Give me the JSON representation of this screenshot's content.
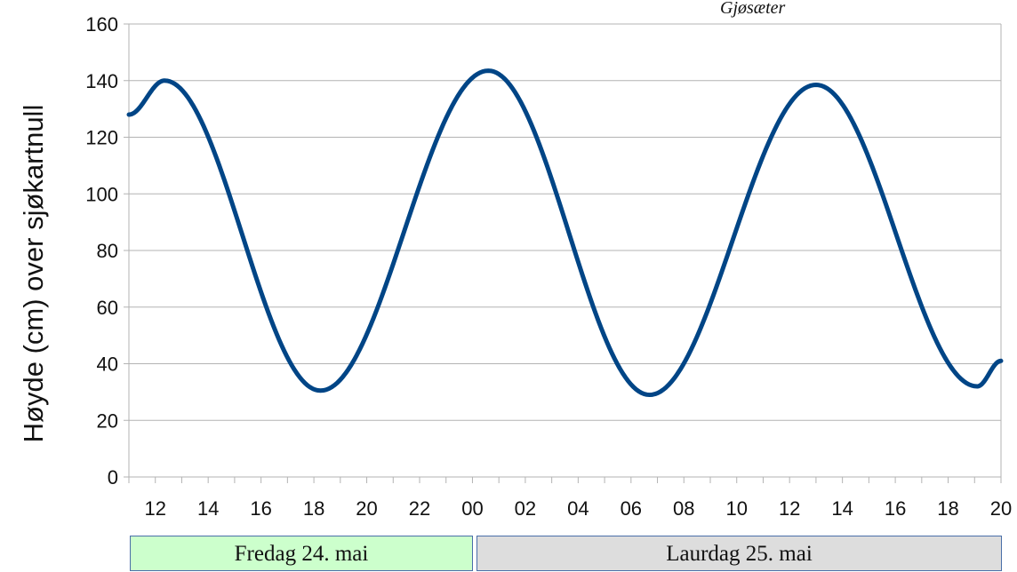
{
  "credit": "Gjøsæter",
  "days": [
    {
      "label": "Fredag 24. mai",
      "color": "#ccffcc"
    },
    {
      "label": "Laurdag 25. mai",
      "color": "#dddddd"
    }
  ],
  "chart_data": {
    "type": "line",
    "title": "",
    "xlabel": "",
    "ylabel": "Høyde (cm) over sjøkartnull",
    "ylim": [
      0,
      160
    ],
    "yticks": [
      0,
      20,
      40,
      60,
      80,
      100,
      120,
      140,
      160
    ],
    "xlim_hours": [
      11,
      44
    ],
    "xtick_hours": [
      12,
      14,
      16,
      18,
      20,
      22,
      24,
      26,
      28,
      30,
      32,
      34,
      36,
      38,
      40,
      42,
      44
    ],
    "xtick_labels": [
      "12",
      "14",
      "16",
      "18",
      "20",
      "22",
      "00",
      "02",
      "04",
      "06",
      "08",
      "10",
      "12",
      "14",
      "16",
      "18",
      "20"
    ],
    "grid": true,
    "line_color": "#004586",
    "series": [
      {
        "x": [
          11.0,
          12.35,
          18.25,
          24.6,
          30.7,
          37.0,
          43.1,
          44.0
        ],
        "values": [
          128,
          140,
          30.5,
          143.5,
          29,
          138.5,
          32,
          41
        ]
      }
    ]
  }
}
